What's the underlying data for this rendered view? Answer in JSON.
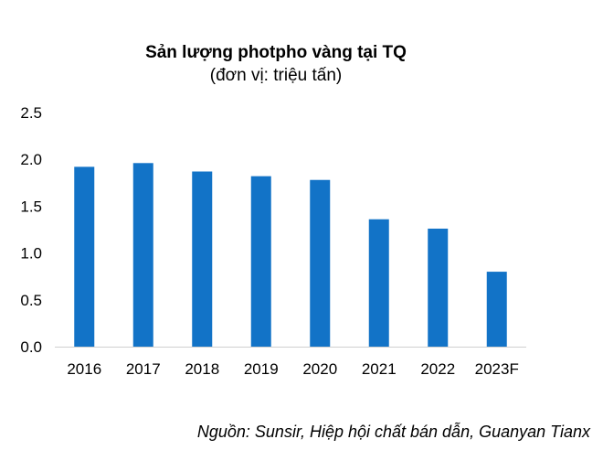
{
  "chart_data": {
    "type": "bar",
    "title": "Sản lượng photpho vàng tại TQ",
    "subtitle": "(đơn vị: triệu tấn)",
    "categories": [
      "2016",
      "2017",
      "2018",
      "2019",
      "2020",
      "2021",
      "2022",
      "2023F"
    ],
    "values": [
      1.92,
      1.96,
      1.87,
      1.82,
      1.78,
      1.36,
      1.26,
      0.8
    ],
    "y_ticks": [
      "0.0",
      "0.5",
      "1.0",
      "1.5",
      "2.0",
      "2.5"
    ],
    "ylim": [
      0,
      2.5
    ],
    "grid": false,
    "legend": "none",
    "xlabel": "",
    "ylabel": "",
    "bar_color": "#1273c7"
  },
  "source": "Nguồn: Sunsir, Hiệp hội chất bán dẫn, Guanyan Tianx"
}
